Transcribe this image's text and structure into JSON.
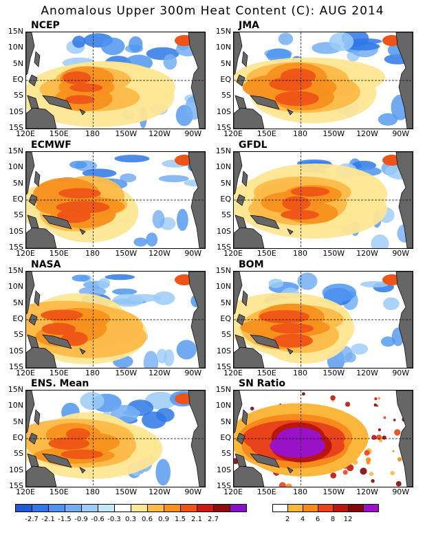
{
  "title": "Anomalous Upper 300m Heat Content (C): AUG 2014",
  "panels": [
    {
      "label": "NCEP",
      "center_lon": 178,
      "center_lat": -2,
      "strength": 1.0
    },
    {
      "label": "JMA",
      "center_lon": 185,
      "center_lat": -1,
      "strength": 1.1
    },
    {
      "label": "ECMWF",
      "center_lon": 170,
      "center_lat": -1,
      "strength": 1.2
    },
    {
      "label": "GFDL",
      "center_lon": 185,
      "center_lat": 0,
      "strength": 1.0
    },
    {
      "label": "NASA",
      "center_lon": 168,
      "center_lat": -2,
      "strength": 1.0
    },
    {
      "label": "BOM",
      "center_lon": 176,
      "center_lat": -2,
      "strength": 1.1
    },
    {
      "label": "ENS. Mean",
      "center_lon": 172,
      "center_lat": -1,
      "strength": 0.9
    },
    {
      "label": "SN Ratio",
      "center_lon": 178,
      "center_lat": -1,
      "strength": 1.4
    }
  ],
  "lat_ticks": [
    "15N",
    "10N",
    "5N",
    "EQ",
    "5S",
    "10S",
    "15S"
  ],
  "lon_ticks": [
    "120E",
    "150E",
    "180",
    "150W",
    "120W",
    "90W"
  ],
  "anomaly_colorbar": {
    "labels": [
      "-2.7",
      "-2.1",
      "-1.5",
      "-0.9",
      "-0.6",
      "-0.3",
      "0.3",
      "0.6",
      "0.9",
      "1.5",
      "2.1",
      "2.7"
    ],
    "colors": [
      "#1e5ad6",
      "#2f78e6",
      "#4f95ee",
      "#74aef2",
      "#9ccbf6",
      "#c4e8fa",
      "#ffffff",
      "#fde694",
      "#fcbb49",
      "#f7901d",
      "#ee5417",
      "#c81b12",
      "#8f0c0c",
      "#8a10c8"
    ]
  },
  "snr_colorbar": {
    "labels": [
      "2",
      "4",
      "6",
      "8",
      "12"
    ],
    "colors": [
      "#ffffff",
      "#fbb63c",
      "#f78a1c",
      "#e8431a",
      "#b8160f",
      "#7e0a0a",
      "#9a12c8"
    ]
  }
}
